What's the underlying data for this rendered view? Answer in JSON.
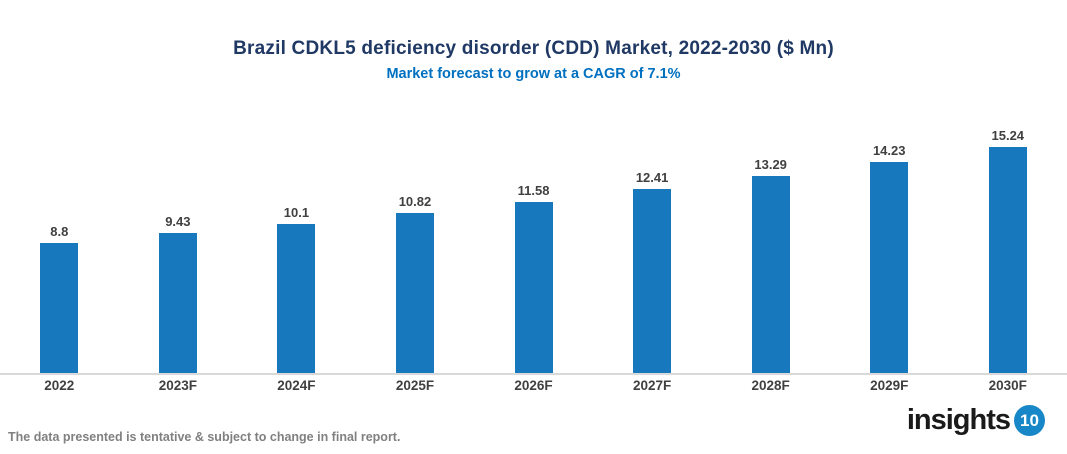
{
  "header": {
    "title": "Brazil CDKL5 deficiency disorder (CDD) Market, 2022-2030 ($ Mn)",
    "subtitle": "Market forecast to grow at a CAGR of 7.1%"
  },
  "chart_data": {
    "type": "bar",
    "categories": [
      "2022",
      "2023F",
      "2024F",
      "2025F",
      "2026F",
      "2027F",
      "2028F",
      "2029F",
      "2030F"
    ],
    "values": [
      8.8,
      9.43,
      10.1,
      10.82,
      11.58,
      12.41,
      13.29,
      14.23,
      15.24
    ],
    "title": "Brazil CDKL5 deficiency disorder (CDD) Market, 2022-2030 ($ Mn)",
    "subtitle": "Market forecast to grow at a CAGR of 7.1%",
    "xlabel": "",
    "ylabel": "",
    "ylim": [
      0,
      18
    ],
    "grid": false,
    "legend": false,
    "data_labels": true
  },
  "colors": {
    "bar": "#1878BE",
    "title": "#1F3864",
    "subtitle": "#0070C0",
    "axis_line": "#D9D9D9",
    "data_label": "#404040",
    "footer_text": "#808080",
    "logo_badge": "#1787C8"
  },
  "footer": {
    "note": "The data presented is tentative & subject to change in final report."
  },
  "logo": {
    "text": "insights",
    "badge": "10"
  }
}
